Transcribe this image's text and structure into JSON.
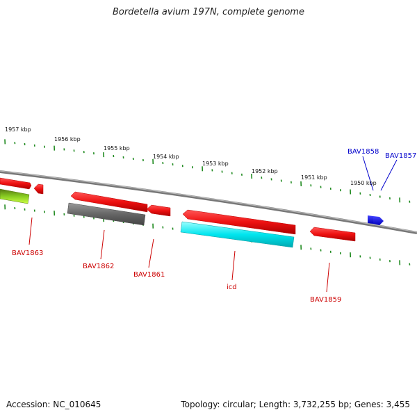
{
  "title": "Bordetella avium 197N, complete genome",
  "footer": {
    "accession": "Accession: NC_010645",
    "summary": "Topology: circular; Length: 3,732,255 bp; Genes: 3,455"
  },
  "colors": {
    "tick": "#1f8a1f",
    "backbone": "#8a8a8a",
    "gene_red": "#ee1111",
    "gene_gray": "#666666",
    "gene_cyan": "#00e5ee",
    "gene_green": "#88cc22",
    "gene_blue": "#0000ee",
    "label_red": "#cc0000",
    "label_blue": "#0000cc"
  },
  "scale_labels": [
    "1957 kbp",
    "1956 kbp",
    "1955 kbp",
    "1954 kbp",
    "1953 kbp",
    "1952 kbp",
    "1951 kbp",
    "1950 kbp"
  ],
  "gene_labels": [
    "BAV1863",
    "BAV1862",
    "BAV1861",
    "icd",
    "BAV1859",
    "BAV1858",
    "BAV1857"
  ]
}
